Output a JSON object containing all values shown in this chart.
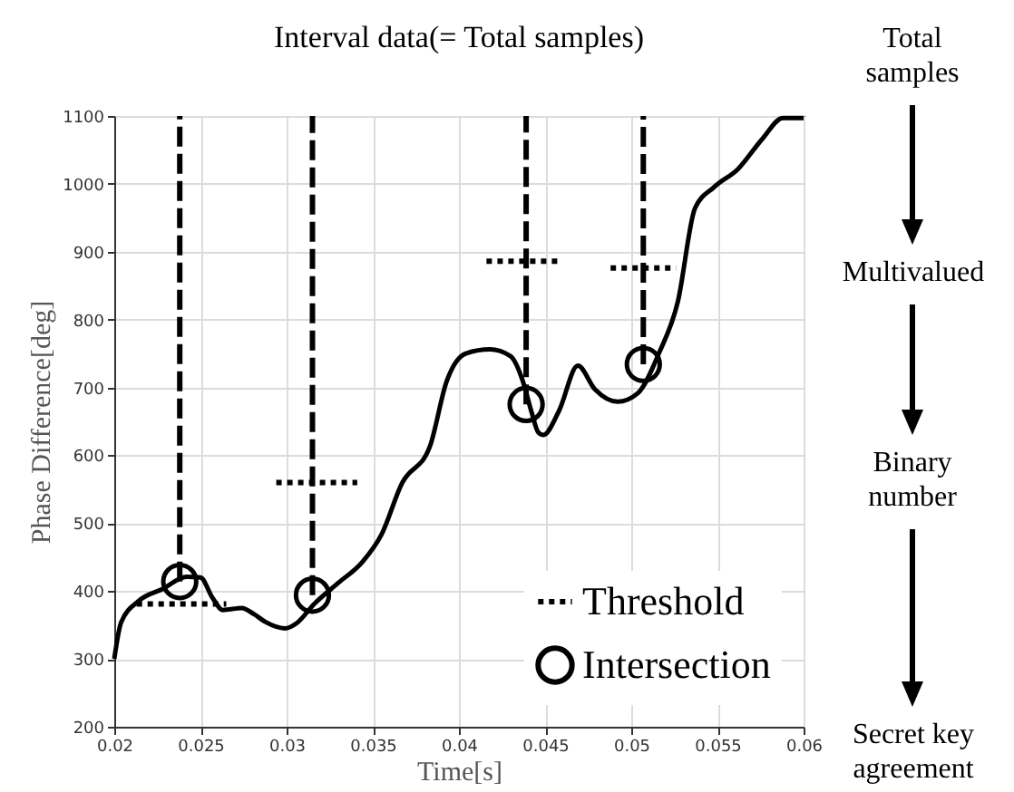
{
  "chart_data": {
    "type": "line",
    "title": "Interval data(= Total samples)",
    "xlabel": "Time[s]",
    "ylabel": "Phase Difference[deg]",
    "xlim": [
      0.02,
      0.06
    ],
    "xticks": [
      0.02,
      0.025,
      0.03,
      0.035,
      0.04,
      0.045,
      0.05,
      0.055,
      0.06
    ],
    "ylim": [
      200,
      1100
    ],
    "yticks": [
      200,
      300,
      400,
      500,
      600,
      700,
      800,
      900,
      1000,
      1100
    ],
    "grid": true,
    "legend": "bottom right",
    "annotations": [
      "Total samples",
      "Multivalued",
      "Binary number",
      "Secret key agreement"
    ],
    "series": [
      {
        "color": "#000000",
        "x": [
          0.02,
          0.0204,
          0.0214,
          0.0228,
          0.0242,
          0.025,
          0.0257,
          0.0263,
          0.0274,
          0.0281,
          0.0288,
          0.0299,
          0.0306,
          0.0316,
          0.033,
          0.0344,
          0.0355,
          0.0367,
          0.0383,
          0.0393,
          0.0404,
          0.0418,
          0.043,
          0.0437,
          0.0442,
          0.0446,
          0.0449,
          0.0458,
          0.0469,
          0.0479,
          0.0492,
          0.0504,
          0.0516,
          0.0527,
          0.0537,
          0.0548,
          0.0562,
          0.0576,
          0.0588,
          0.06
        ],
        "values": [
          300,
          354,
          385,
          403,
          421,
          420,
          390,
          372,
          375,
          366,
          354,
          345,
          353,
          381,
          412,
          443,
          483,
          559,
          612,
          710,
          750,
          756,
          746,
          710,
          665,
          634,
          630,
          665,
          732,
          697,
          679,
          692,
          750,
          826,
          964,
          995,
          1022,
          1066,
          1097,
          1097
        ]
      },
      {
        "name": "Threshold",
        "color": "#000000",
        "line_style": "dotted",
        "x": [
          0.0213,
          0.0265
        ],
        "values": [
          381,
          381
        ]
      },
      {
        "color": "#000000",
        "line_style": "dotted",
        "x": [
          0.0294,
          0.0341
        ],
        "values": [
          560,
          560
        ]
      },
      {
        "color": "#000000",
        "line_style": "dotted",
        "x": [
          0.0416,
          0.046
        ],
        "values": [
          886,
          886
        ]
      },
      {
        "color": "#000000",
        "line_style": "dotted",
        "x": [
          0.0488,
          0.0526
        ],
        "values": [
          876,
          876
        ]
      },
      {
        "color": "#000000",
        "line_style": "dashed",
        "x": [
          0.0238,
          0.0238
        ],
        "values": [
          414,
          1100
        ]
      },
      {
        "color": "#000000",
        "line_style": "dashed",
        "x": [
          0.0315,
          0.0315
        ],
        "values": [
          394,
          1100
        ]
      },
      {
        "color": "#000000",
        "line_style": "dashed",
        "x": [
          0.0439,
          0.0439
        ],
        "values": [
          675,
          1100
        ]
      },
      {
        "color": "#000000",
        "line_style": "dashed",
        "x": [
          0.0507,
          0.0507
        ],
        "values": [
          734,
          1100
        ]
      },
      {
        "type": "scatter",
        "name": "Intersection",
        "color": "#000000",
        "marker": "circle",
        "x": [
          0.0238,
          0.0315,
          0.0439,
          0.0507
        ],
        "values": [
          414,
          394,
          675,
          734
        ]
      }
    ]
  }
}
